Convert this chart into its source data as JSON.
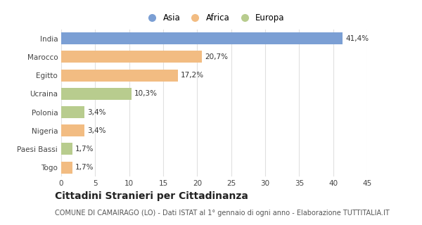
{
  "categories": [
    "India",
    "Marocco",
    "Egitto",
    "Ucraina",
    "Polonia",
    "Nigeria",
    "Paesi Bassi",
    "Togo"
  ],
  "values": [
    41.4,
    20.7,
    17.2,
    10.3,
    3.4,
    3.4,
    1.7,
    1.7
  ],
  "labels": [
    "41,4%",
    "20,7%",
    "17,2%",
    "10,3%",
    "3,4%",
    "3,4%",
    "1,7%",
    "1,7%"
  ],
  "colors": [
    "#7b9fd4",
    "#f2bc82",
    "#f2bc82",
    "#b8cc8e",
    "#b8cc8e",
    "#f2bc82",
    "#b8cc8e",
    "#f2bc82"
  ],
  "legend": [
    {
      "label": "Asia",
      "color": "#7b9fd4"
    },
    {
      "label": "Africa",
      "color": "#f2bc82"
    },
    {
      "label": "Europa",
      "color": "#b8cc8e"
    }
  ],
  "xlim": [
    0,
    45
  ],
  "xticks": [
    0,
    5,
    10,
    15,
    20,
    25,
    30,
    35,
    40,
    45
  ],
  "title": "Cittadini Stranieri per Cittadinanza",
  "subtitle": "COMUNE DI CAMAIRAGO (LO) - Dati ISTAT al 1° gennaio di ogni anno - Elaborazione TUTTITALIA.IT",
  "background_color": "#ffffff",
  "bar_height": 0.65,
  "label_fontsize": 7.5,
  "tick_fontsize": 7.5,
  "title_fontsize": 10,
  "subtitle_fontsize": 7
}
